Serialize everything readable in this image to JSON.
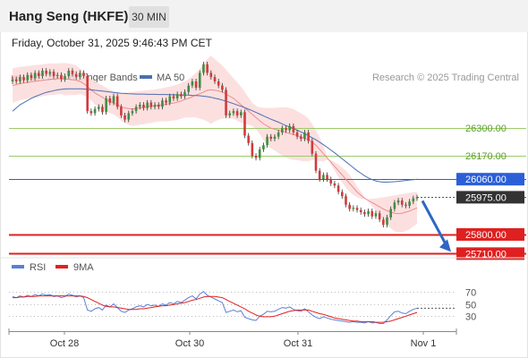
{
  "header": {
    "title": "Hang Seng (HKFE)",
    "timeframe": "30 MIN",
    "datetime": "Friday, October 31, 2025 9:46:43 PM CET"
  },
  "price_legend": {
    "ma20_label": "MA 20 + Bollinger Bands",
    "ma50_label": "MA 50",
    "credit": "Research © 2025 Trading Central"
  },
  "rsi_legend": {
    "rsi_label": "RSI",
    "ma_label": "9MA"
  },
  "colors": {
    "ma20": "#f08b8b",
    "ma50": "#4a6fb3",
    "bollinger_fill": "#fbdada",
    "support": "#e02020",
    "blue_line": "#2a5fd8",
    "resistance": "#9ccc6a",
    "resistance_text": "#5aa02a",
    "up_candle": "#3f8f3f",
    "down_candle": "#d33a3a",
    "arrow": "#2f67c4",
    "rsi": "#5b7fd6",
    "rsi_ma": "#e02020"
  },
  "chart_data": [
    {
      "type": "candlestick",
      "title": "Hang Seng (HKFE)",
      "timeframe": "30 MIN",
      "x_ticks": [
        "Oct 28",
        "Oct 30",
        "Oct 31",
        "Nov 1"
      ],
      "ylim": [
        25640,
        26650
      ],
      "levels": [
        {
          "value": 26300.0,
          "label": "26300.00",
          "kind": "resistance"
        },
        {
          "value": 26170.0,
          "label": "26170.00",
          "kind": "resistance"
        },
        {
          "value": 26060.0,
          "label": "26060.00",
          "kind": "pivot"
        },
        {
          "value": 25975.0,
          "label": "25975.00",
          "kind": "last"
        },
        {
          "value": 25800.0,
          "label": "25800.00",
          "kind": "support"
        },
        {
          "value": 25710.0,
          "label": "25710.00",
          "kind": "support"
        }
      ],
      "closes": [
        26530,
        26520,
        26540,
        26525,
        26550,
        26535,
        26560,
        26545,
        26570,
        26555,
        26565,
        26545,
        26550,
        26530,
        26545,
        26570,
        26555,
        26540,
        26560,
        26545,
        26380,
        26370,
        26390,
        26400,
        26375,
        26440,
        26420,
        26450,
        26400,
        26360,
        26340,
        26370,
        26380,
        26400,
        26410,
        26395,
        26420,
        26400,
        26410,
        26400,
        26430,
        26420,
        26450,
        26440,
        26460,
        26450,
        26470,
        26500,
        26520,
        26490,
        26560,
        26600,
        26560,
        26540,
        26520,
        26500,
        26480,
        26360,
        26370,
        26380,
        26360,
        26375,
        26265,
        26230,
        26170,
        26160,
        26200,
        26220,
        26260,
        26250,
        26260,
        26280,
        26300,
        26290,
        26310,
        26280,
        26260,
        26250,
        26280,
        26240,
        26180,
        26100,
        26060,
        26080,
        26060,
        26040,
        26030,
        26000,
        25980,
        25940,
        25920,
        25925,
        25915,
        25905,
        25895,
        25910,
        25885,
        25900,
        25870,
        25845,
        25880,
        25920,
        25950,
        25960,
        25940,
        25935,
        25955,
        25970,
        25975
      ],
      "series": [
        {
          "name": "MA 20",
          "values": [
            26500,
            26505,
            26510,
            26512,
            26515,
            26518,
            26520,
            26522,
            26525,
            26527,
            26530,
            26530,
            26532,
            26533,
            26530,
            26530,
            26528,
            26525,
            26520,
            26510,
            26495,
            26480,
            26465,
            26455,
            26445,
            26435,
            26425,
            26418,
            26410,
            26400,
            26395,
            26392,
            26390,
            26392,
            26395,
            26397,
            26400,
            26402,
            26405,
            26408,
            26410,
            26412,
            26415,
            26418,
            26422,
            26428,
            26435,
            26440,
            26448,
            26455,
            26462,
            26470,
            26478,
            26480,
            26478,
            26475,
            26470,
            26460,
            26450,
            26440,
            26425,
            26410,
            26395,
            26380,
            26365,
            26350,
            26335,
            26320,
            26310,
            26300,
            26295,
            26290,
            26285,
            26280,
            26275,
            26270,
            26265,
            26258,
            26252,
            26245,
            26235,
            26220,
            26200,
            26180,
            26160,
            26140,
            26120,
            26100,
            26080,
            26060,
            26040,
            26020,
            26000,
            25985,
            25970,
            25960,
            25950,
            25940,
            25930,
            25920,
            25912,
            25905,
            25900,
            25898,
            25900,
            25905,
            25910,
            25918,
            25925
          ]
        },
        {
          "name": "MA 50",
          "values": [
            26380,
            26395,
            26410,
            26420,
            26430,
            26440,
            26448,
            26455,
            26462,
            26468,
            26472,
            26476,
            26480,
            26482,
            26484,
            26485,
            26485,
            26485,
            26485,
            26484,
            26482,
            26480,
            26478,
            26476,
            26474,
            26472,
            26470,
            26468,
            26466,
            26464,
            26463,
            26462,
            26461,
            26460,
            26460,
            26460,
            26459,
            26459,
            26459,
            26458,
            26458,
            26458,
            26457,
            26457,
            26456,
            26456,
            26455,
            26455,
            26454,
            26453,
            26452,
            26450,
            26448,
            26445,
            26441,
            26437,
            26432,
            26427,
            26421,
            26415,
            26409,
            26403,
            26396,
            26389,
            26382,
            26374,
            26366,
            26358,
            26350,
            26342,
            26335,
            26328,
            26320,
            26312,
            26305,
            26298,
            26290,
            26282,
            26274,
            26265,
            26255,
            26245,
            26234,
            26222,
            26210,
            26197,
            26184,
            26170,
            26156,
            26142,
            26128,
            26114,
            26100,
            26088,
            26076,
            26066,
            26058,
            26052,
            26048,
            26046,
            26046,
            26047,
            26048,
            26050,
            26052,
            26054,
            26056,
            26058,
            26060
          ]
        },
        {
          "name": "BB upper",
          "values": [
            26580,
            26585,
            26588,
            26590,
            26592,
            26594,
            26596,
            26598,
            26600,
            26602,
            26604,
            26604,
            26605,
            26606,
            26606,
            26605,
            26600,
            26595,
            26580,
            26565,
            26545,
            26530,
            26520,
            26510,
            26500,
            26490,
            26480,
            26472,
            26468,
            26465,
            26466,
            26468,
            26470,
            26472,
            26474,
            26476,
            26478,
            26480,
            26482,
            26485,
            26488,
            26492,
            26496,
            26500,
            26505,
            26512,
            26520,
            26530,
            26545,
            26560,
            26580,
            26600,
            26625,
            26640,
            26625,
            26610,
            26595,
            26575,
            26555,
            26535,
            26515,
            26495,
            26470,
            26445,
            26420,
            26405,
            26398,
            26396,
            26395,
            26395,
            26396,
            26397,
            26398,
            26398,
            26395,
            26390,
            26380,
            26370,
            26360,
            26345,
            26320,
            26290,
            26255,
            26215,
            26170,
            26130,
            26100,
            26070,
            26045,
            26020,
            26000,
            25985,
            25975,
            25968,
            25966,
            25966,
            25968,
            25970,
            25972,
            25975,
            25978,
            25981,
            25984,
            25987,
            25990,
            25993,
            25996,
            25998,
            26000
          ]
        },
        {
          "name": "BB lower",
          "values": [
            26420,
            26425,
            26432,
            26434,
            26438,
            26442,
            26444,
            26446,
            26450,
            26452,
            26456,
            26456,
            26459,
            26460,
            26454,
            26455,
            26456,
            26455,
            26460,
            26455,
            26445,
            26430,
            26410,
            26400,
            26390,
            26380,
            26370,
            26364,
            26352,
            26335,
            26324,
            26316,
            26310,
            26312,
            26316,
            26318,
            26322,
            26324,
            26328,
            26331,
            26332,
            26332,
            26334,
            26336,
            26339,
            26344,
            26350,
            26350,
            26351,
            26350,
            26344,
            26340,
            26331,
            26320,
            26331,
            26340,
            26345,
            26345,
            26345,
            26345,
            26335,
            26325,
            26320,
            26315,
            26310,
            26295,
            26272,
            26244,
            26225,
            26205,
            26194,
            26183,
            26172,
            26162,
            26155,
            26150,
            26150,
            26146,
            26144,
            26145,
            26150,
            26150,
            26145,
            26145,
            26150,
            26150,
            26140,
            26130,
            26115,
            26100,
            26080,
            26055,
            26025,
            26002,
            25974,
            25954,
            25932,
            25910,
            25888,
            25865,
            25846,
            25829,
            25816,
            25809,
            25810,
            25817,
            25824,
            25838,
            25850
          ]
        },
        {
          "name": "RSI",
          "values": [
            62,
            60,
            63,
            61,
            64,
            62,
            65,
            63,
            66,
            64,
            65,
            62,
            63,
            60,
            62,
            66,
            64,
            61,
            63,
            60,
            40,
            38,
            42,
            44,
            40,
            48,
            45,
            50,
            44,
            38,
            36,
            40,
            42,
            45,
            47,
            45,
            49,
            47,
            48,
            46,
            50,
            48,
            52,
            50,
            54,
            52,
            56,
            60,
            63,
            58,
            66,
            70,
            64,
            61,
            58,
            55,
            52,
            36,
            38,
            40,
            37,
            39,
            28,
            26,
            24,
            23,
            30,
            33,
            38,
            37,
            38,
            41,
            44,
            43,
            45,
            41,
            39,
            38,
            42,
            37,
            32,
            28,
            26,
            29,
            27,
            25,
            24,
            23,
            22,
            21,
            20,
            21,
            20,
            20,
            19,
            21,
            19,
            20,
            18,
            18,
            24,
            31,
            37,
            38,
            35,
            34,
            38,
            41,
            43
          ]
        },
        {
          "name": "9MA",
          "values": [
            60,
            60,
            61,
            61,
            62,
            62,
            62,
            63,
            63,
            63,
            63,
            63,
            63,
            63,
            63,
            63,
            63,
            63,
            63,
            62,
            60,
            57,
            54,
            51,
            48,
            46,
            45,
            45,
            44,
            43,
            42,
            41,
            41,
            41,
            42,
            42,
            43,
            44,
            45,
            46,
            47,
            47,
            48,
            49,
            50,
            51,
            52,
            54,
            56,
            57,
            59,
            61,
            62,
            62,
            62,
            61,
            60,
            57,
            54,
            51,
            48,
            45,
            42,
            38,
            35,
            32,
            30,
            29,
            29,
            29,
            30,
            32,
            34,
            36,
            38,
            39,
            40,
            40,
            40,
            40,
            38,
            36,
            34,
            33,
            31,
            29,
            27,
            26,
            25,
            24,
            23,
            22,
            22,
            21,
            21,
            21,
            21,
            20,
            20,
            20,
            21,
            22,
            24,
            26,
            28,
            30,
            32,
            34,
            36
          ]
        }
      ]
    },
    {
      "type": "line",
      "title": "",
      "yticks": [
        70,
        50,
        30
      ],
      "ylim": [
        10,
        90
      ]
    }
  ]
}
